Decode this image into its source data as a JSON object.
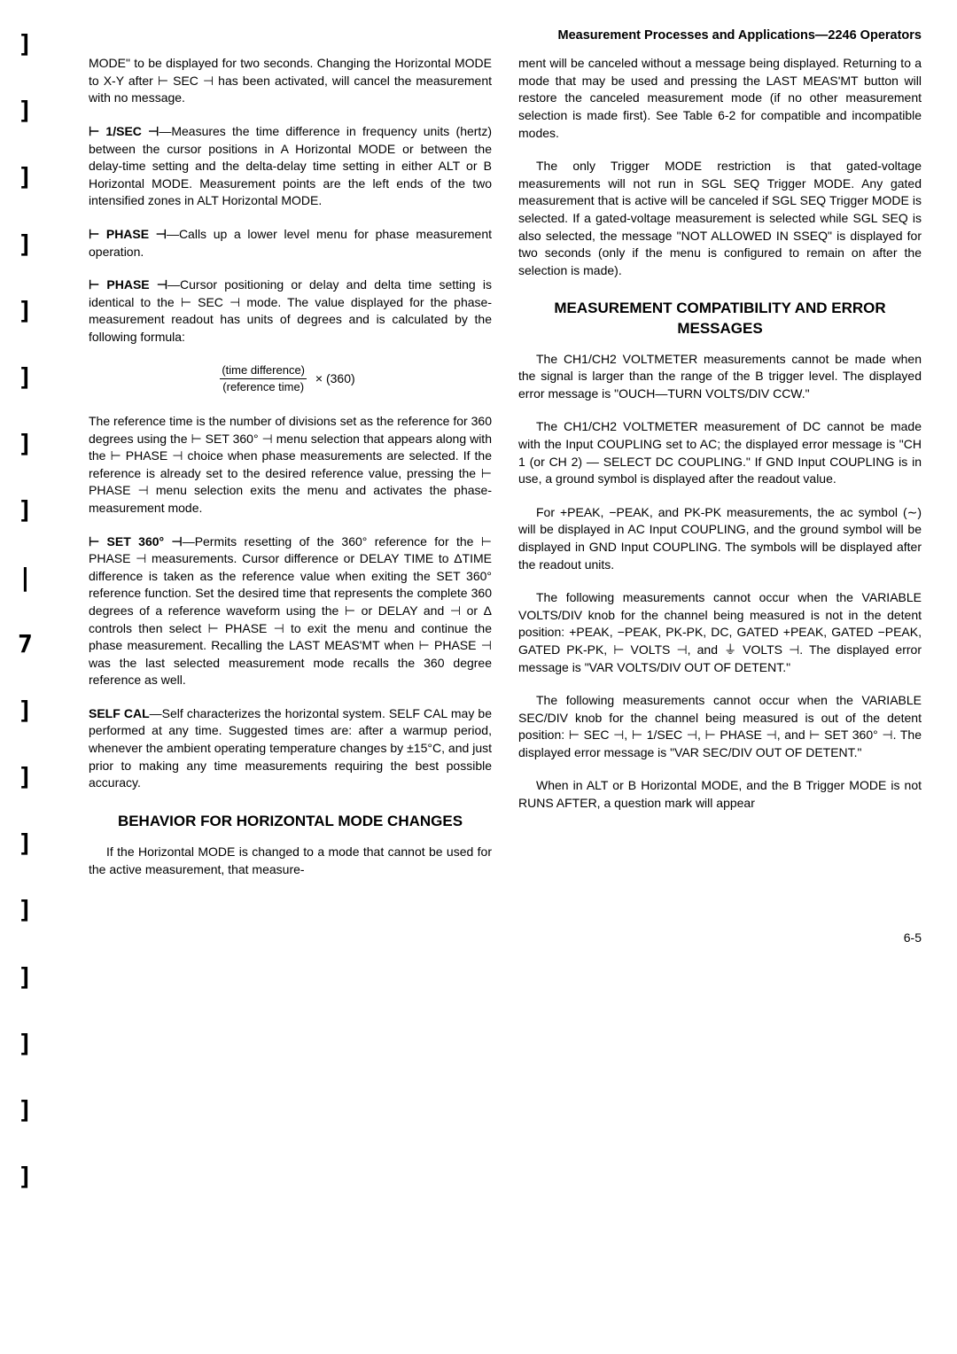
{
  "header": {
    "title": "Measurement Processes and Applications—2246 Operators"
  },
  "left": {
    "p1": "MODE\" to be displayed for two seconds. Changing the Horizontal MODE to X-Y after ⊢ SEC ⊣ has been activated, will cancel the measurement with no message.",
    "p2_bold": "⊢ 1/SEC ⊣",
    "p2_rest": "—Measures the time difference in frequency units (hertz) between the cursor positions in A Horizontal MODE or between the delay-time setting and the delta-delay time setting in either ALT or B Horizontal MODE. Measurement points are the left ends of the two intensified zones in ALT Horizontal MODE.",
    "p3_bold": "⊢ PHASE ⊣",
    "p3_rest": "—Calls up a lower level menu for phase measurement operation.",
    "p4_bold": "⊢ PHASE ⊣",
    "p4_rest": "—Cursor positioning or delay and delta time setting is identical to the ⊢ SEC ⊣ mode. The value displayed for the phase-measurement readout has units of degrees and is calculated by the following formula:",
    "formula_top": "(time difference)",
    "formula_bot": "(reference time)",
    "formula_mult": "× (360)",
    "p5": "The reference time is the number of divisions set as the reference for 360 degrees using the ⊢ SET 360° ⊣ menu selection that appears along with the ⊢ PHASE ⊣ choice when phase measurements are selected. If the reference is already set to the desired reference value, pressing the ⊢ PHASE ⊣ menu selection exits the menu and activates the phase-measurement mode.",
    "p6_bold": "⊢ SET 360° ⊣",
    "p6_rest": "—Permits resetting of the 360° reference for the ⊢ PHASE ⊣ measurements. Cursor difference or DELAY TIME to ΔTIME difference is taken as the reference value when exiting the SET 360° reference function. Set the desired time that represents the complete 360 degrees of a reference waveform using the ⊢ or DELAY and ⊣ or Δ controls then select ⊢ PHASE ⊣ to exit the menu and continue the phase measurement. Recalling the LAST MEAS'MT when ⊢ PHASE ⊣ was the last selected measurement mode recalls the 360 degree reference as well.",
    "p7_bold": "SELF CAL",
    "p7_rest": "—Self characterizes the horizontal system. SELF CAL may be performed at any time. Suggested times are: after a warmup period, whenever the ambient operating temperature changes by ±15°C, and just prior to making any time measurements requiring the best possible accuracy.",
    "h1": "BEHAVIOR FOR HORIZONTAL MODE CHANGES",
    "p8": "If the Horizontal MODE is changed to a mode that cannot be used for the active measurement, that measure-"
  },
  "right": {
    "p1": "ment will be canceled without a message being displayed. Returning to a mode that may be used and pressing the LAST MEAS'MT button will restore the canceled measurement mode (if no other measurement selection is made first). See Table 6-2 for compatible and incompatible modes.",
    "p2": "The only Trigger MODE restriction is that gated-voltage measurements will not run in SGL SEQ Trigger MODE. Any gated measurement that is active will be canceled if SGL SEQ Trigger MODE is selected. If a gated-voltage measurement is selected while SGL SEQ is also selected, the message \"NOT ALLOWED IN SSEQ\" is displayed for two seconds (only if the menu is configured to remain on after the selection is made).",
    "h1": "MEASUREMENT COMPATIBILITY AND ERROR MESSAGES",
    "p3": "The CH1/CH2 VOLTMETER measurements cannot be made when the signal is larger than the range of the B trigger level. The displayed error message is \"OUCH—TURN VOLTS/DIV CCW.\"",
    "p4": "The CH1/CH2 VOLTMETER measurement of DC cannot be made with the Input COUPLING set to AC; the displayed error message is \"CH 1 (or CH 2) — SELECT DC COUPLING.\" If GND Input COUPLING is in use, a ground symbol is displayed after the readout value.",
    "p5": "For +PEAK, −PEAK, and PK-PK measurements, the ac symbol (∼) will be displayed in AC Input COUPLING, and the ground symbol will be displayed in GND Input COUPLING. The symbols will be displayed after the readout units.",
    "p6": "The following measurements cannot occur when the VARIABLE VOLTS/DIV knob for the channel being measured is not in the detent position: +PEAK, −PEAK, PK-PK, DC, GATED +PEAK, GATED −PEAK, GATED PK-PK, ⊢ VOLTS ⊣, and ⏚ VOLTS ⊣. The displayed error message is \"VAR VOLTS/DIV OUT OF DETENT.\"",
    "p7": "The following measurements cannot occur when the VARIABLE SEC/DIV knob for the channel being measured is out of the detent position: ⊢ SEC ⊣, ⊢ 1/SEC ⊣, ⊢ PHASE ⊣, and ⊢ SET 360° ⊣. The displayed error message is \"VAR SEC/DIV OUT OF DETENT.\"",
    "p8": "When in ALT or B Horizontal MODE, and the B Trigger MODE is not RUNS AFTER, a question mark will appear"
  },
  "page_number": "6-5",
  "binding_marks": [
    "]",
    "]",
    "]",
    "]",
    "]",
    "]",
    "]",
    "]",
    "|",
    "7",
    "]",
    "]",
    "]",
    "]",
    "]",
    "]",
    "]",
    "]"
  ]
}
